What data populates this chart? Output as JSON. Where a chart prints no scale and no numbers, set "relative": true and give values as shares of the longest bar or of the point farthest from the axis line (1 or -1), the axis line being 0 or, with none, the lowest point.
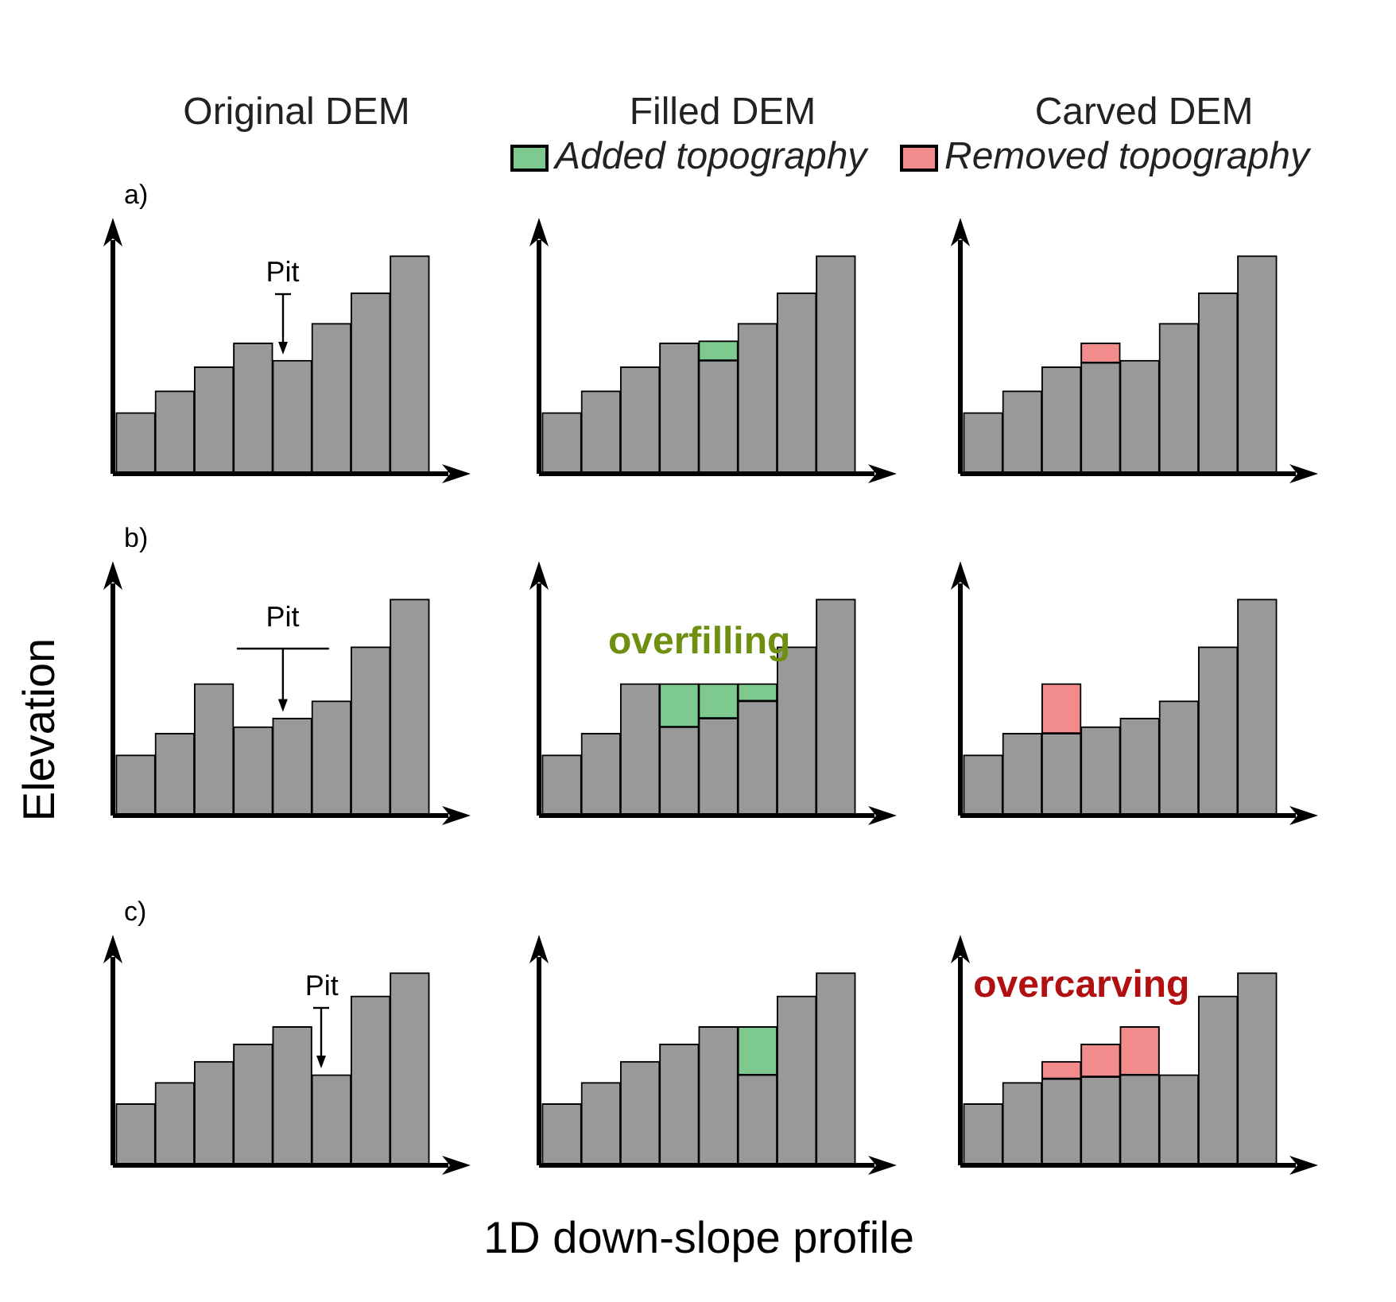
{
  "chart_data": [
    {
      "type": "bar",
      "stacked": true,
      "relative": true,
      "title": "Original DEM",
      "annotations": [
        "a)",
        "Pit"
      ],
      "categories": [
        null,
        null,
        null,
        null,
        null,
        null,
        null,
        null
      ],
      "series": [
        {
          "color": "#999999",
          "values": [
            0.28,
            0.38,
            0.49,
            0.6,
            0.52,
            0.69,
            0.83,
            1
          ]
        }
      ]
    },
    {
      "type": "bar",
      "stacked": true,
      "relative": true,
      "title": "Filled DEM",
      "legend": "top",
      "categories": [
        null,
        null,
        null,
        null,
        null,
        null,
        null,
        null
      ],
      "series": [
        {
          "color": "#999999",
          "values": [
            0.28,
            0.38,
            0.49,
            0.6,
            0.52,
            0.69,
            0.83,
            1
          ]
        },
        {
          "name": "Added topography",
          "color": "#7dc98f",
          "values": [
            0,
            0,
            0,
            0,
            0.09,
            0,
            0,
            0
          ]
        }
      ]
    },
    {
      "type": "bar",
      "stacked": true,
      "relative": true,
      "title": "Carved DEM",
      "legend": "top",
      "categories": [
        null,
        null,
        null,
        null,
        null,
        null,
        null,
        null
      ],
      "series": [
        {
          "color": "#999999",
          "values": [
            0.28,
            0.38,
            0.49,
            0.51,
            0.52,
            0.69,
            0.83,
            1
          ]
        },
        {
          "name": "Removed topography",
          "color": "#f28b8b",
          "values": [
            0,
            0,
            0,
            0.09,
            0,
            0,
            0,
            0
          ]
        }
      ]
    },
    {
      "type": "bar",
      "stacked": true,
      "relative": true,
      "ylabel": "Elevation",
      "annotations": [
        "b)",
        "Pit"
      ],
      "categories": [
        null,
        null,
        null,
        null,
        null,
        null,
        null,
        null
      ],
      "series": [
        {
          "color": "#999999",
          "values": [
            0.28,
            0.38,
            0.61,
            0.41,
            0.45,
            0.53,
            0.78,
            1
          ]
        }
      ]
    },
    {
      "type": "bar",
      "stacked": true,
      "relative": true,
      "annotations": [
        "overfilling"
      ],
      "categories": [
        null,
        null,
        null,
        null,
        null,
        null,
        null,
        null
      ],
      "series": [
        {
          "color": "#999999",
          "values": [
            0.28,
            0.38,
            0.61,
            0.41,
            0.45,
            0.53,
            0.78,
            1
          ]
        },
        {
          "color": "#7dc98f",
          "values": [
            0,
            0,
            0,
            0.2,
            0.16,
            0.08,
            0,
            0
          ]
        }
      ]
    },
    {
      "type": "bar",
      "stacked": true,
      "relative": true,
      "categories": [
        null,
        null,
        null,
        null,
        null,
        null,
        null,
        null
      ],
      "series": [
        {
          "color": "#999999",
          "values": [
            0.28,
            0.38,
            0.38,
            0.41,
            0.45,
            0.53,
            0.78,
            1
          ]
        },
        {
          "color": "#f28b8b",
          "values": [
            0,
            0,
            0.23,
            0,
            0,
            0,
            0,
            0
          ]
        }
      ]
    },
    {
      "type": "bar",
      "stacked": true,
      "relative": true,
      "annotations": [
        "c)",
        "Pit"
      ],
      "categories": [
        null,
        null,
        null,
        null,
        null,
        null,
        null,
        null
      ],
      "series": [
        {
          "color": "#999999",
          "values": [
            0.32,
            0.43,
            0.54,
            0.63,
            0.72,
            0.47,
            0.88,
            1
          ]
        }
      ]
    },
    {
      "type": "bar",
      "stacked": true,
      "relative": true,
      "xlabel": "1D down-slope profile",
      "categories": [
        null,
        null,
        null,
        null,
        null,
        null,
        null,
        null
      ],
      "series": [
        {
          "color": "#999999",
          "values": [
            0.32,
            0.43,
            0.54,
            0.63,
            0.72,
            0.47,
            0.88,
            1
          ]
        },
        {
          "color": "#7dc98f",
          "values": [
            0,
            0,
            0,
            0,
            0,
            0.25,
            0,
            0
          ]
        }
      ]
    },
    {
      "type": "bar",
      "stacked": true,
      "relative": true,
      "annotations": [
        "overcarving"
      ],
      "categories": [
        null,
        null,
        null,
        null,
        null,
        null,
        null,
        null
      ],
      "series": [
        {
          "color": "#999999",
          "values": [
            0.32,
            0.43,
            0.45,
            0.46,
            0.47,
            0.47,
            0.88,
            1
          ]
        },
        {
          "color": "#f28b8b",
          "values": [
            0,
            0,
            0.09,
            0.17,
            0.25,
            0,
            0,
            0
          ]
        }
      ]
    }
  ]
}
